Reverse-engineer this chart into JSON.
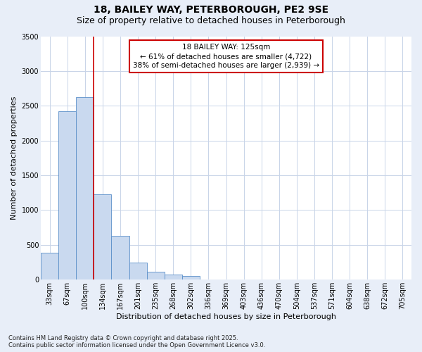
{
  "title1": "18, BAILEY WAY, PETERBOROUGH, PE2 9SE",
  "title2": "Size of property relative to detached houses in Peterborough",
  "xlabel": "Distribution of detached houses by size in Peterborough",
  "ylabel": "Number of detached properties",
  "categories": [
    "33sqm",
    "67sqm",
    "100sqm",
    "134sqm",
    "167sqm",
    "201sqm",
    "235sqm",
    "268sqm",
    "302sqm",
    "336sqm",
    "369sqm",
    "403sqm",
    "436sqm",
    "470sqm",
    "504sqm",
    "537sqm",
    "571sqm",
    "604sqm",
    "638sqm",
    "672sqm",
    "705sqm"
  ],
  "values": [
    390,
    2420,
    2620,
    1230,
    630,
    250,
    110,
    70,
    50,
    0,
    0,
    0,
    0,
    0,
    0,
    0,
    0,
    0,
    0,
    0,
    0
  ],
  "bar_color": "#c9d9ef",
  "bar_edge_color": "#5b8fc9",
  "grid_color": "#c8d4e8",
  "plot_bg_color": "#ffffff",
  "fig_bg_color": "#e8eef8",
  "vline_color": "#cc0000",
  "vline_x_idx": 2.5,
  "annotation_text": "18 BAILEY WAY: 125sqm\n← 61% of detached houses are smaller (4,722)\n38% of semi-detached houses are larger (2,939) →",
  "annotation_box_color": "#cc0000",
  "ylim": [
    0,
    3500
  ],
  "yticks": [
    0,
    500,
    1000,
    1500,
    2000,
    2500,
    3000,
    3500
  ],
  "footnote": "Contains HM Land Registry data © Crown copyright and database right 2025.\nContains public sector information licensed under the Open Government Licence v3.0.",
  "title_fontsize": 10,
  "subtitle_fontsize": 9,
  "axis_label_fontsize": 8,
  "tick_fontsize": 7,
  "annotation_fontsize": 7.5,
  "footnote_fontsize": 6
}
